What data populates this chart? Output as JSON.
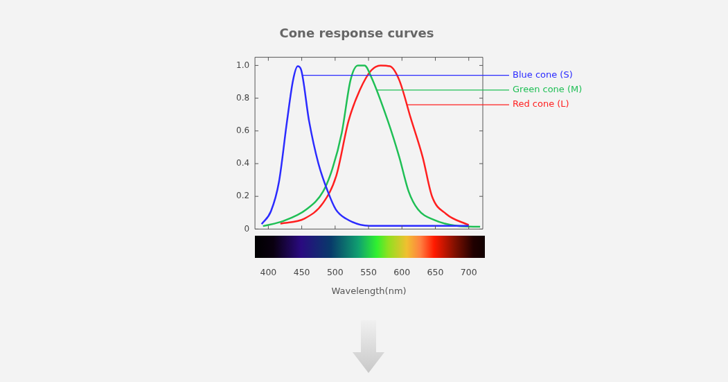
{
  "chart_data": {
    "type": "line",
    "title": "Cone response curves",
    "xlabel": "Wavelength(nm)",
    "xlim": [
      380,
      721
    ],
    "xticks": [
      400,
      450,
      500,
      550,
      600,
      650,
      700
    ],
    "ylim": [
      0,
      1.05
    ],
    "yticks": [
      0,
      {
        "value": 0.2,
        "label": "0.2"
      },
      {
        "value": 0.4,
        "label": "0.4"
      },
      {
        "value": 0.6,
        "label": "0.6"
      },
      {
        "value": 0.8,
        "label": "0.8"
      },
      {
        "value": 1,
        "label": "1.0"
      }
    ],
    "grid": false,
    "legend": false,
    "marker": "none",
    "line_style": "solid",
    "series": [
      {
        "name": "Blue cone (S)",
        "color": "#2b2bff",
        "x": [
          390,
          404,
          416,
          428,
          437,
          444,
          449,
          461,
          475,
          489,
          501,
          516,
          551,
          700
        ],
        "values": [
          0.03,
          0.11,
          0.29,
          0.66,
          0.91,
          0.995,
          0.975,
          0.66,
          0.4,
          0.23,
          0.12,
          0.064,
          0.02,
          0.02
        ]
      },
      {
        "name": "Green cone (M)",
        "color": "#1fbf55",
        "x": [
          392,
          423,
          457,
          482,
          496,
          510,
          523,
          534,
          544,
          554,
          579,
          596,
          610,
          624,
          648,
          682,
          717
        ],
        "values": [
          0.018,
          0.05,
          0.12,
          0.23,
          0.37,
          0.59,
          0.91,
          1.0,
          1.0,
          0.93,
          0.66,
          0.44,
          0.23,
          0.12,
          0.056,
          0.02,
          0.014
        ]
      },
      {
        "name": "Red cone (L)",
        "color": "#ff1f1f",
        "x": [
          418,
          454,
          482,
          502,
          520,
          537,
          554,
          568,
          582,
          596,
          613,
          631,
          645,
          666,
          700
        ],
        "values": [
          0.033,
          0.064,
          0.16,
          0.33,
          0.66,
          0.85,
          0.97,
          1.0,
          0.995,
          0.91,
          0.68,
          0.44,
          0.2,
          0.093,
          0.024
        ]
      }
    ]
  }
}
